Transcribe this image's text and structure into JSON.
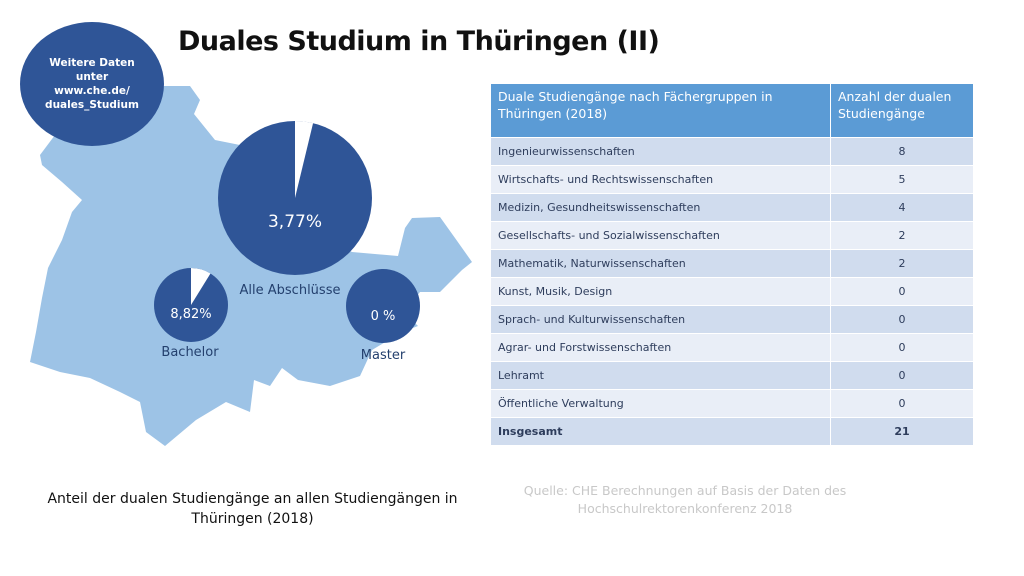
{
  "title": "Duales Studium in Thüringen (II)",
  "info_bubble": {
    "lines": [
      "Weitere Daten",
      "unter",
      "www.che.de/",
      "duales_Studium"
    ]
  },
  "chart_data": {
    "type": "pie",
    "pies": [
      {
        "name": "Alle Abschlüsse",
        "value_percent": 3.77,
        "label": "3,77%"
      },
      {
        "name": "Bachelor",
        "value_percent": 8.82,
        "label": "8,82%"
      },
      {
        "name": "Master",
        "value_percent": 0,
        "label": "0 %"
      }
    ],
    "colors": {
      "rest": "#2f5597",
      "dual": "#ffffff",
      "map": "#9dc3e6"
    }
  },
  "table": {
    "headers": [
      "Duale Studiengänge nach Fächergruppen in Thüringen (2018)",
      "Anzahl der dualen Studiengänge"
    ],
    "rows": [
      [
        "Ingenieurwissenschaften",
        "8"
      ],
      [
        "Wirtschafts- und Rechtswissenschaften",
        "5"
      ],
      [
        "Medizin, Gesundheitswissenschaften",
        "4"
      ],
      [
        "Gesellschafts- und Sozialwissenschaften",
        "2"
      ],
      [
        "Mathematik, Naturwissenschaften",
        "2"
      ],
      [
        "Kunst, Musik, Design",
        "0"
      ],
      [
        "Sprach- und Kulturwissenschaften",
        "0"
      ],
      [
        "Agrar- und Forstwissenschaften",
        "0"
      ],
      [
        "Lehramt",
        "0"
      ],
      [
        "Öffentliche Verwaltung",
        "0"
      ],
      [
        "Insgesamt",
        "21"
      ]
    ]
  },
  "caption": "Anteil der dualen Studiengänge an allen Studiengängen in Thüringen (2018)",
  "source": "Quelle: CHE Berechnungen auf Basis der Daten des Hochschulrektorenkonferenz 2018"
}
